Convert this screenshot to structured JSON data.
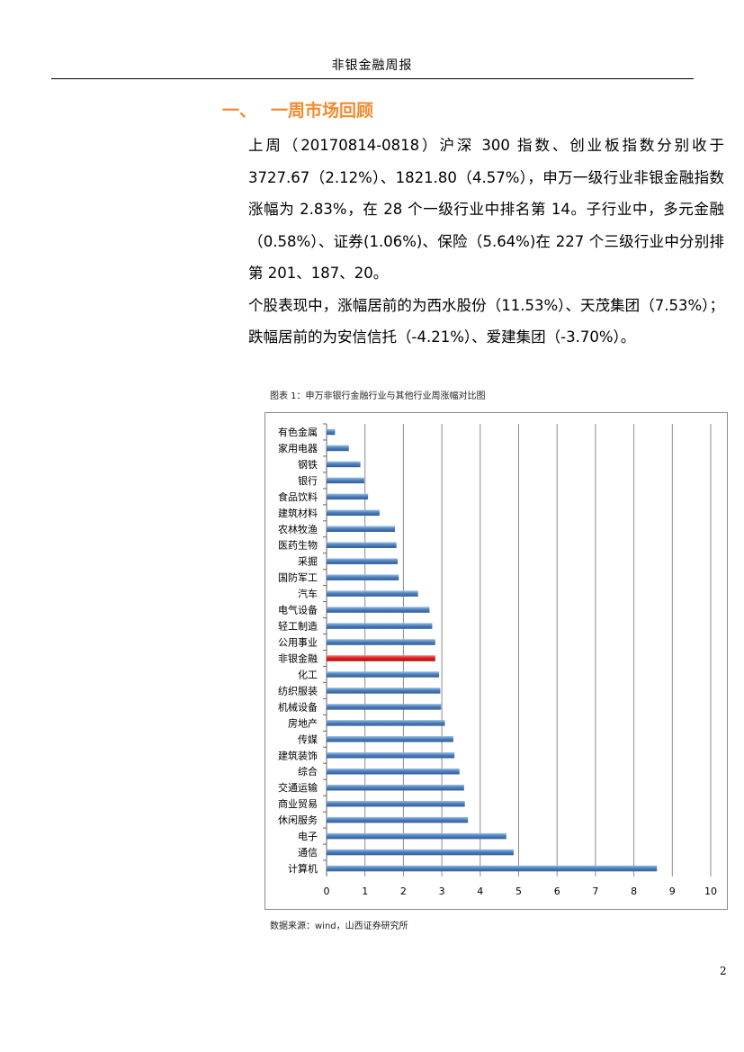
{
  "header": {
    "title": "非银金融周报"
  },
  "section": {
    "number": "一、",
    "title": "一周市场回顾"
  },
  "body": {
    "paragraph1": "上周（20170814-0818）沪深 300 指数、创业板指数分别收于 3727.67（2.12%）、1821.80（4.57%），申万一级行业非银金融指数涨幅为 2.83%，在 28 个一级行业中排名第 14。子行业中，多元金融（0.58%）、证券(1.06%)、保险（5.64%)在 227 个三级行业中分别排第 201、187、20。",
    "paragraph2": "个股表现中，涨幅居前的为西水股份（11.53%）、天茂集团（7.53%）；跌幅居前的为安信信托（-4.21%）、爱建集团（-3.70%）。"
  },
  "figure": {
    "caption": "图表 1：申万非银行金融行业与其他行业周涨幅对比图",
    "source": "数据来源：wind，山西证券研究所"
  },
  "page_number": "2",
  "colors": {
    "bar": "#4f81bd",
    "highlight": "#e02020",
    "heading": "#f28a2e"
  },
  "chart_data": {
    "type": "bar",
    "orientation": "horizontal",
    "categories": [
      "有色金属",
      "家用电器",
      "钢铁",
      "银行",
      "食品饮料",
      "建筑材料",
      "农林牧渔",
      "医药生物",
      "采掘",
      "国防军工",
      "汽车",
      "电气设备",
      "轻工制造",
      "公用事业",
      "非银金融",
      "化工",
      "纺织服装",
      "机械设备",
      "房地产",
      "传媒",
      "建筑装饰",
      "综合",
      "交通运输",
      "商业贸易",
      "休闲服务",
      "电子",
      "通信",
      "计算机"
    ],
    "values": [
      0.22,
      0.58,
      0.88,
      0.98,
      1.08,
      1.38,
      1.78,
      1.82,
      1.85,
      1.88,
      2.38,
      2.68,
      2.75,
      2.83,
      2.83,
      2.93,
      2.96,
      2.98,
      3.08,
      3.3,
      3.33,
      3.46,
      3.58,
      3.6,
      3.68,
      4.68,
      4.87,
      8.6
    ],
    "highlight": "非银金融",
    "xlim": [
      0,
      10
    ],
    "xticks": [
      0,
      1,
      2,
      3,
      4,
      5,
      6,
      7,
      8,
      9,
      10
    ],
    "grid": true,
    "legend": "none"
  }
}
